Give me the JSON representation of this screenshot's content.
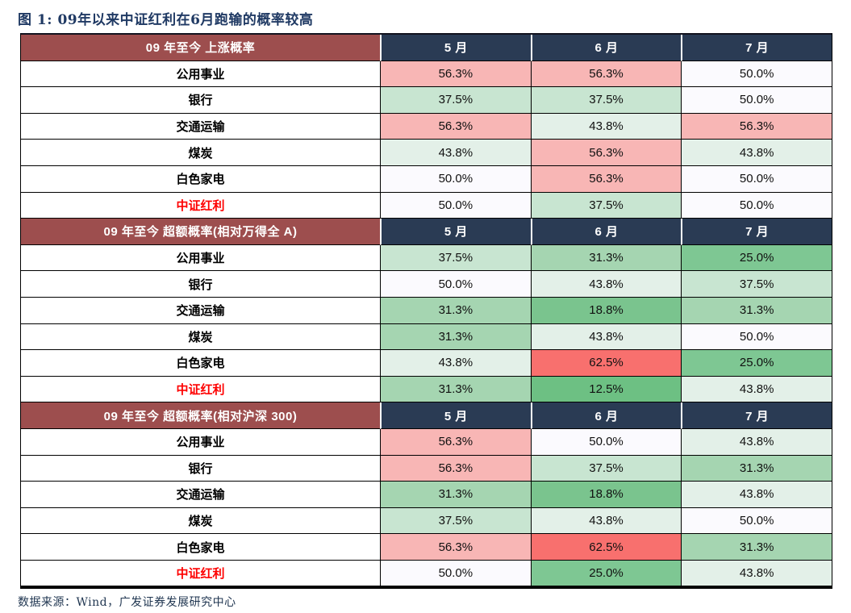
{
  "title": "图 1: 09年以来中证红利在6月跑输的概率较高",
  "source_note": "数据来源：Wind，广发证券发展研究中心",
  "colors": {
    "title_text": "#203a64",
    "section_header_bg": "#9d4e4e",
    "month_header_bg": "#2a3b54",
    "header_text": "#ffffff",
    "grid_line": "#000000",
    "highlight_label": "#fe0000",
    "source_text": "#1f3550",
    "value_scale": {
      "62.5%": "#f8706e",
      "56.3%": "#f8b6b5",
      "50.0%": "#fbfafe",
      "43.8%": "#e3f0e8",
      "37.5%": "#c8e5d1",
      "31.3%": "#a5d5b1",
      "25.0%": "#7ec793",
      "18.8%": "#7ac48e",
      "12.5%": "#6dc083"
    }
  },
  "chart_data": {
    "type": "table",
    "title": "图 1: 09年以来中证红利在6月跑输的概率较高",
    "months": [
      "5 月",
      "6 月",
      "7 月"
    ],
    "sections": [
      {
        "title": "09 年至今 上涨概率",
        "rows": [
          {
            "label": "公用事业",
            "highlight": false,
            "values": [
              "56.3%",
              "56.3%",
              "50.0%"
            ]
          },
          {
            "label": "银行",
            "highlight": false,
            "values": [
              "37.5%",
              "37.5%",
              "50.0%"
            ]
          },
          {
            "label": "交通运输",
            "highlight": false,
            "values": [
              "56.3%",
              "43.8%",
              "56.3%"
            ]
          },
          {
            "label": "煤炭",
            "highlight": false,
            "values": [
              "43.8%",
              "56.3%",
              "43.8%"
            ]
          },
          {
            "label": "白色家电",
            "highlight": false,
            "values": [
              "50.0%",
              "56.3%",
              "50.0%"
            ]
          },
          {
            "label": "中证红利",
            "highlight": true,
            "values": [
              "50.0%",
              "37.5%",
              "50.0%"
            ]
          }
        ]
      },
      {
        "title": "09 年至今 超额概率(相对万得全 A)",
        "rows": [
          {
            "label": "公用事业",
            "highlight": false,
            "values": [
              "37.5%",
              "31.3%",
              "25.0%"
            ]
          },
          {
            "label": "银行",
            "highlight": false,
            "values": [
              "50.0%",
              "43.8%",
              "37.5%"
            ]
          },
          {
            "label": "交通运输",
            "highlight": false,
            "values": [
              "31.3%",
              "18.8%",
              "31.3%"
            ]
          },
          {
            "label": "煤炭",
            "highlight": false,
            "values": [
              "31.3%",
              "43.8%",
              "50.0%"
            ]
          },
          {
            "label": "白色家电",
            "highlight": false,
            "values": [
              "43.8%",
              "62.5%",
              "25.0%"
            ]
          },
          {
            "label": "中证红利",
            "highlight": true,
            "values": [
              "31.3%",
              "12.5%",
              "43.8%"
            ]
          }
        ]
      },
      {
        "title": "09 年至今 超额概率(相对沪深 300)",
        "rows": [
          {
            "label": "公用事业",
            "highlight": false,
            "values": [
              "56.3%",
              "50.0%",
              "43.8%"
            ]
          },
          {
            "label": "银行",
            "highlight": false,
            "values": [
              "56.3%",
              "37.5%",
              "31.3%"
            ]
          },
          {
            "label": "交通运输",
            "highlight": false,
            "values": [
              "31.3%",
              "18.8%",
              "43.8%"
            ]
          },
          {
            "label": "煤炭",
            "highlight": false,
            "values": [
              "37.5%",
              "43.8%",
              "50.0%"
            ]
          },
          {
            "label": "白色家电",
            "highlight": false,
            "values": [
              "56.3%",
              "62.5%",
              "31.3%"
            ]
          },
          {
            "label": "中证红利",
            "highlight": true,
            "values": [
              "50.0%",
              "25.0%",
              "43.8%"
            ]
          }
        ]
      }
    ]
  }
}
